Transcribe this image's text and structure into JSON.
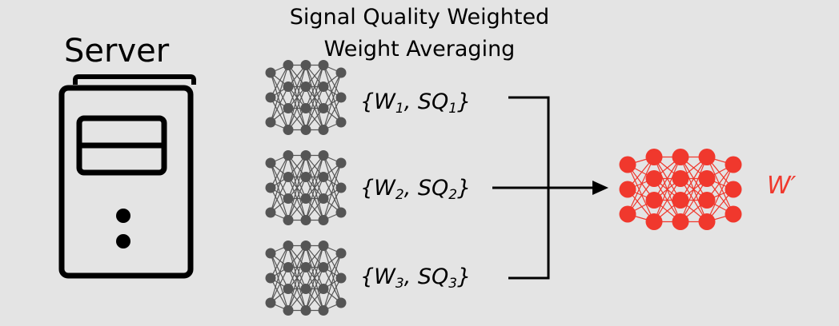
{
  "title": {
    "line1": "Signal Quality Weighted",
    "line2": "Weight Averaging"
  },
  "server": {
    "label": "Server"
  },
  "clients": [
    {
      "open": "{W",
      "w_sub": "1",
      "sep": ", SQ",
      "sq_sub": "1",
      "close": "}"
    },
    {
      "open": "{W",
      "w_sub": "2",
      "sep": ", SQ",
      "sq_sub": "2",
      "close": "}"
    },
    {
      "open": "{W",
      "w_sub": "3",
      "sep": ", SQ",
      "sq_sub": "3",
      "close": "}"
    }
  ],
  "output": {
    "label": "W′"
  },
  "colors": {
    "background": "#e4e4e4",
    "network": "#555555",
    "output_network": "#f0382d",
    "line": "#000000"
  }
}
